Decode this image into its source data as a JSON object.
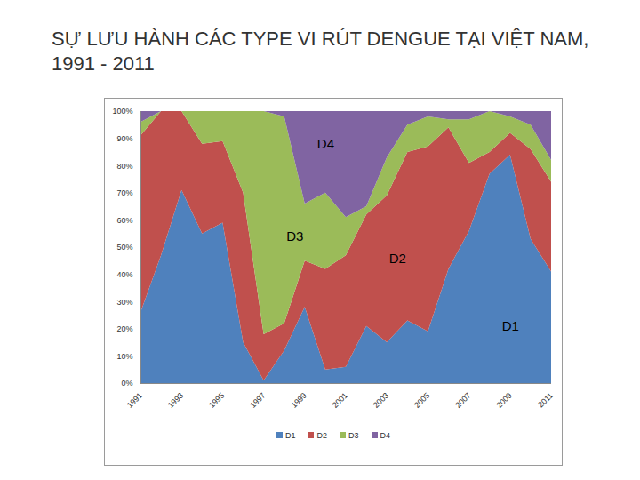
{
  "chart_data": {
    "type": "area",
    "stacked": true,
    "title": "SỰ LƯU HÀNH CÁC TYPE VI RÚT DENGUE TẠI VIỆT NAM, 1991 - 2011",
    "x": [
      1991,
      1992,
      1993,
      1994,
      1995,
      1996,
      1997,
      1998,
      1999,
      2000,
      2001,
      2002,
      2003,
      2004,
      2005,
      2006,
      2007,
      2008,
      2009,
      2010,
      2011
    ],
    "series": [
      {
        "name": "D1",
        "color": "#4f81bd",
        "values": [
          26,
          47,
          71,
          55,
          59,
          15,
          1,
          12,
          28,
          5,
          6,
          21,
          15,
          23,
          19,
          42,
          56,
          77,
          84,
          53,
          41
        ]
      },
      {
        "name": "D2",
        "color": "#c0504d",
        "values": [
          65,
          53,
          29,
          33,
          30,
          55,
          17,
          10,
          17,
          37,
          41,
          41,
          54,
          62,
          68,
          52,
          25,
          8,
          8,
          33,
          33
        ]
      },
      {
        "name": "D3",
        "color": "#9bbb59",
        "values": [
          5,
          0,
          0,
          12,
          11,
          30,
          82,
          76,
          21,
          28,
          14,
          3,
          14,
          10,
          11,
          3,
          16,
          15,
          6,
          9,
          8
        ]
      },
      {
        "name": "D4",
        "color": "#8064a2",
        "values": [
          4,
          0,
          0,
          0,
          0,
          0,
          0,
          2,
          34,
          30,
          39,
          35,
          17,
          5,
          2,
          3,
          3,
          0,
          2,
          5,
          18
        ]
      }
    ],
    "xlim": [
      1991,
      2011
    ],
    "xticks": [
      1991,
      1993,
      1995,
      1997,
      1999,
      2001,
      2003,
      2005,
      2007,
      2009,
      2011
    ],
    "ylim": [
      0,
      100
    ],
    "yticks": [
      {
        "value": 0,
        "label": "0%"
      },
      {
        "value": 10,
        "label": "10%"
      },
      {
        "value": 20,
        "label": "20%"
      },
      {
        "value": 30,
        "label": "30%"
      },
      {
        "value": 40,
        "label": "40%"
      },
      {
        "value": 50,
        "label": "50%"
      },
      {
        "value": 60,
        "label": "60%"
      },
      {
        "value": 70,
        "label": "70%"
      },
      {
        "value": 80,
        "label": "80%"
      },
      {
        "value": 90,
        "label": "90%"
      },
      {
        "value": 100,
        "label": "100%"
      }
    ],
    "annotations": [
      {
        "text": "D4",
        "x": 2000,
        "y": 88
      },
      {
        "text": "D3",
        "x": 1998.5,
        "y": 54
      },
      {
        "text": "D2",
        "x": 2003.5,
        "y": 46
      },
      {
        "text": "D1",
        "x": 2009,
        "y": 21
      }
    ],
    "grid": false,
    "legend": "bottom"
  }
}
